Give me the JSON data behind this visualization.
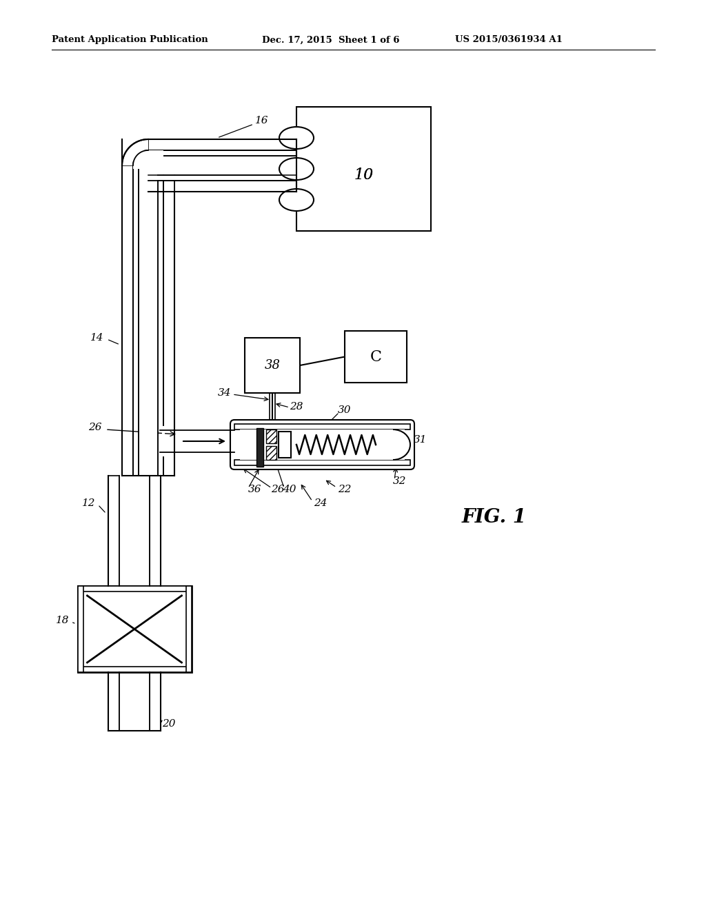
{
  "header_left": "Patent Application Publication",
  "header_mid": "Dec. 17, 2015  Sheet 1 of 6",
  "header_right": "US 2015/0361934 A1",
  "fig_label": "FIG. 1",
  "bg_color": "#ffffff",
  "line_color": "#000000"
}
